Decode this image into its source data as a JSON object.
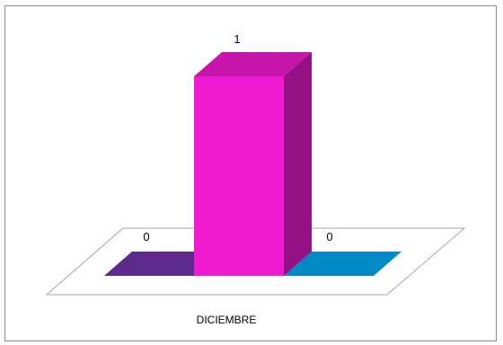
{
  "chart_data": {
    "type": "bar",
    "three_d": true,
    "categories": [
      "DICIEMBRE"
    ],
    "series": [
      {
        "values": [
          0
        ],
        "color": "#5b2a8c"
      },
      {
        "values": [
          1
        ],
        "color": "#f01ad1"
      },
      {
        "values": [
          0
        ],
        "color": "#0089c2"
      }
    ],
    "data_labels": [
      "0",
      "1",
      "0"
    ],
    "title": "",
    "xlabel": "",
    "ylabel": "",
    "ylim": [
      0,
      1
    ],
    "grid": false,
    "legend": "none"
  }
}
